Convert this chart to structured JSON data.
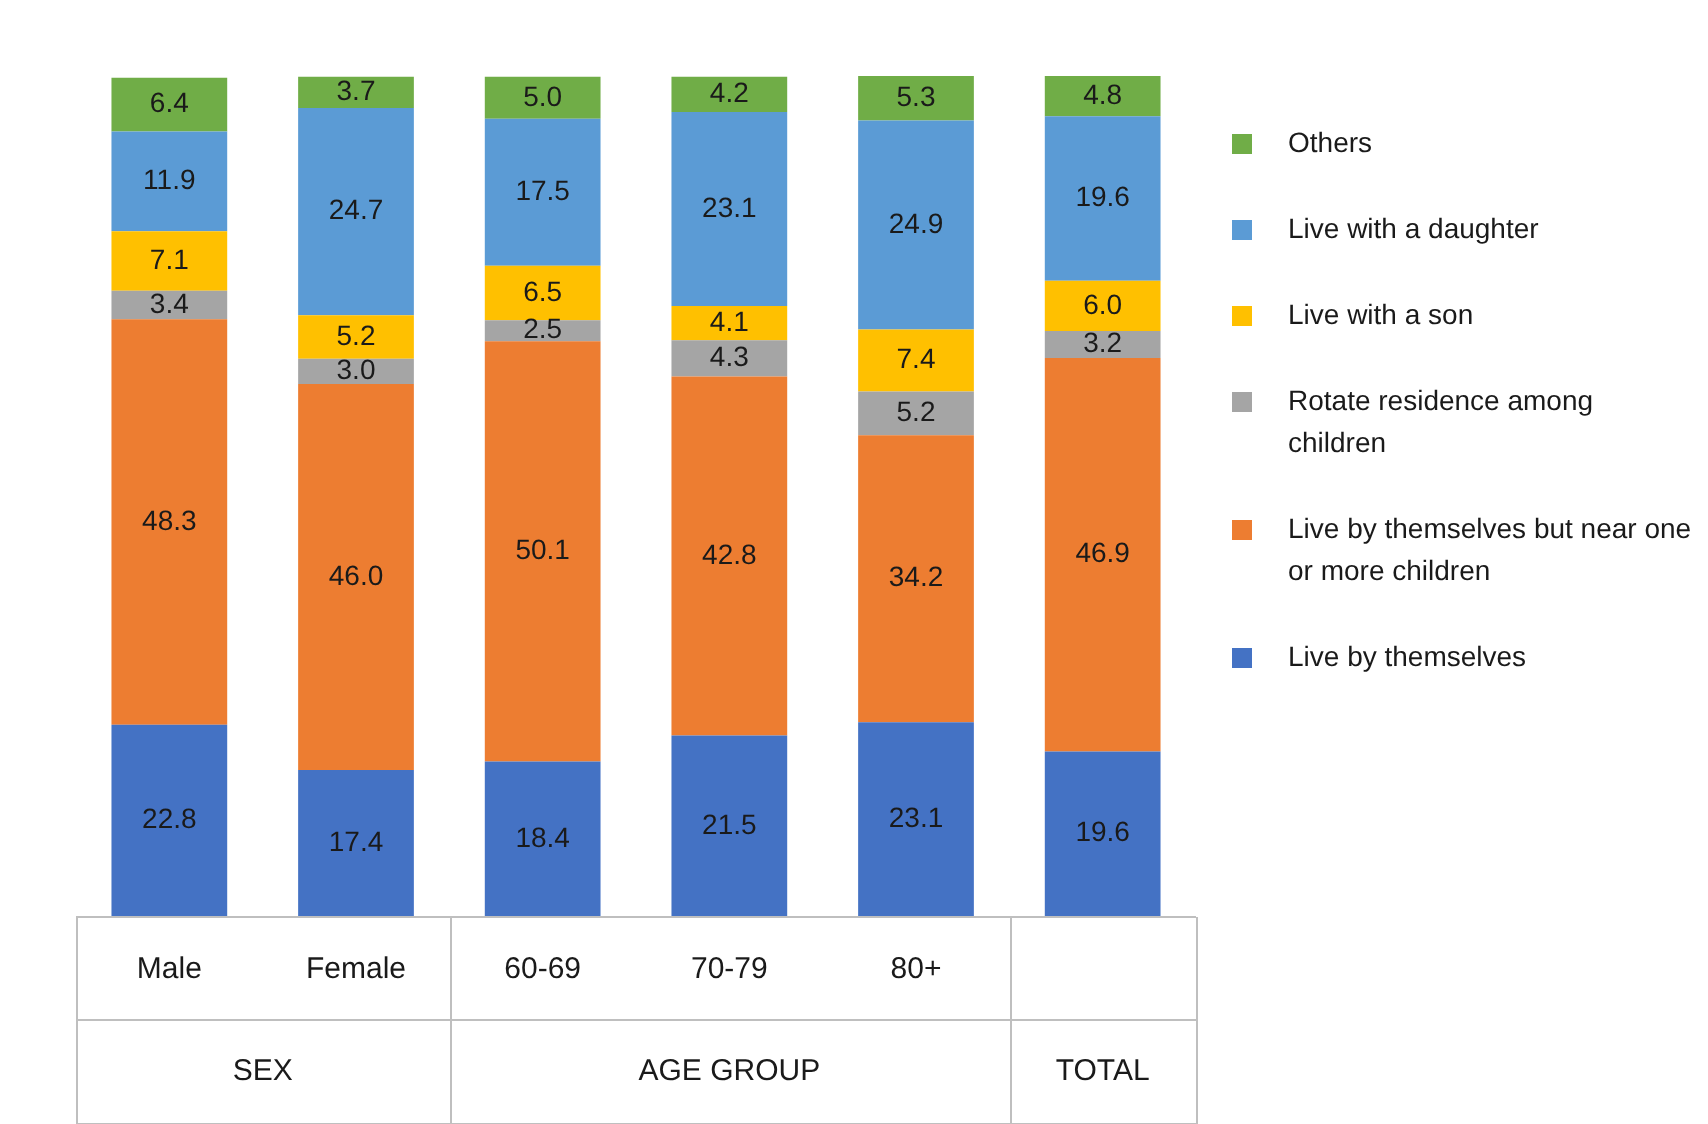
{
  "chart_data": {
    "type": "bar",
    "stacked": true,
    "legend": "right",
    "categories": [
      "Male",
      "Female",
      "60-69",
      "70-79",
      "80+",
      null
    ],
    "annotations": [
      "SEX",
      "AGE GROUP",
      "TOTAL"
    ],
    "series": [
      {
        "name": "Live by themselves",
        "color": "#4472c4",
        "values": [
          22.8,
          17.4,
          18.4,
          21.5,
          23.1,
          19.6
        ],
        "value_labels": [
          "22.8",
          "17.4",
          "18.4",
          "21.5",
          "23.1",
          "19.6"
        ]
      },
      {
        "name": "Live by themselves but near one or more children",
        "color": "#ed7d31",
        "values": [
          48.3,
          46.0,
          50.1,
          42.8,
          34.2,
          46.9
        ],
        "value_labels": [
          "48.3",
          "46.0",
          "50.1",
          "42.8",
          "34.2",
          "46.9"
        ]
      },
      {
        "name": "Rotate residence among children",
        "color": "#a5a5a5",
        "values": [
          3.4,
          3.0,
          2.5,
          4.3,
          5.2,
          3.2
        ],
        "value_labels": [
          "3.4",
          "3.0",
          "2.5",
          "4.3",
          "5.2",
          "3.2"
        ]
      },
      {
        "name": "Live with a son",
        "color": "#ffc000",
        "values": [
          7.1,
          5.2,
          6.5,
          4.1,
          7.4,
          6.0
        ],
        "value_labels": [
          "7.1",
          "5.2",
          "6.5",
          "4.1",
          "7.4",
          "6.0"
        ]
      },
      {
        "name": "Live with a daughter",
        "color": "#5b9bd5",
        "values": [
          11.9,
          24.7,
          17.5,
          23.1,
          24.9,
          19.6
        ],
        "value_labels": [
          "11.9",
          "24.7",
          "17.5",
          "23.1",
          "24.9",
          "19.6"
        ]
      },
      {
        "name": "Others",
        "color": "#70ad47",
        "values": [
          6.4,
          3.7,
          5.0,
          4.2,
          5.3,
          4.8
        ],
        "value_labels": [
          "6.4",
          "3.7",
          "5.0",
          "4.2",
          "5.3",
          "4.8"
        ]
      }
    ]
  }
}
